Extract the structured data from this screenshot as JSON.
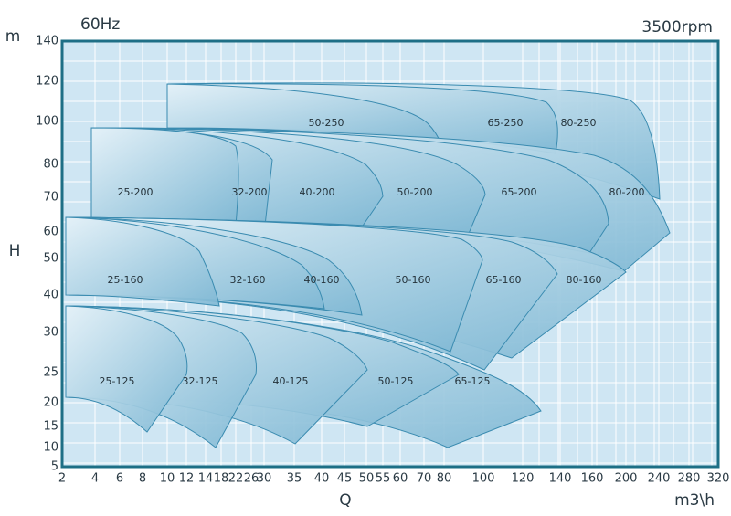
{
  "header": {
    "frequency": "60Hz",
    "speed": "3500rpm"
  },
  "y_axis": {
    "unit": "m",
    "title": "H",
    "ticks": [
      140,
      120,
      100,
      80,
      70,
      60,
      50,
      40,
      30,
      25,
      20,
      15,
      10,
      5
    ]
  },
  "x_axis": {
    "title": "Q",
    "unit": "m3\\h",
    "ticks": [
      2,
      4,
      6,
      8,
      10,
      12,
      14,
      18,
      22,
      26,
      30,
      35,
      40,
      45,
      50,
      55,
      60,
      70,
      80,
      100,
      120,
      140,
      160,
      200,
      240,
      280,
      320
    ]
  },
  "regions": [
    "80-250",
    "65-250",
    "50-250",
    "80-200",
    "65-200",
    "50-200",
    "40-200",
    "32-200",
    "25-200",
    "80-160",
    "65-160",
    "50-160",
    "40-160",
    "32-160",
    "25-160",
    "65-125",
    "50-125",
    "40-125",
    "32-125",
    "25-125"
  ]
}
